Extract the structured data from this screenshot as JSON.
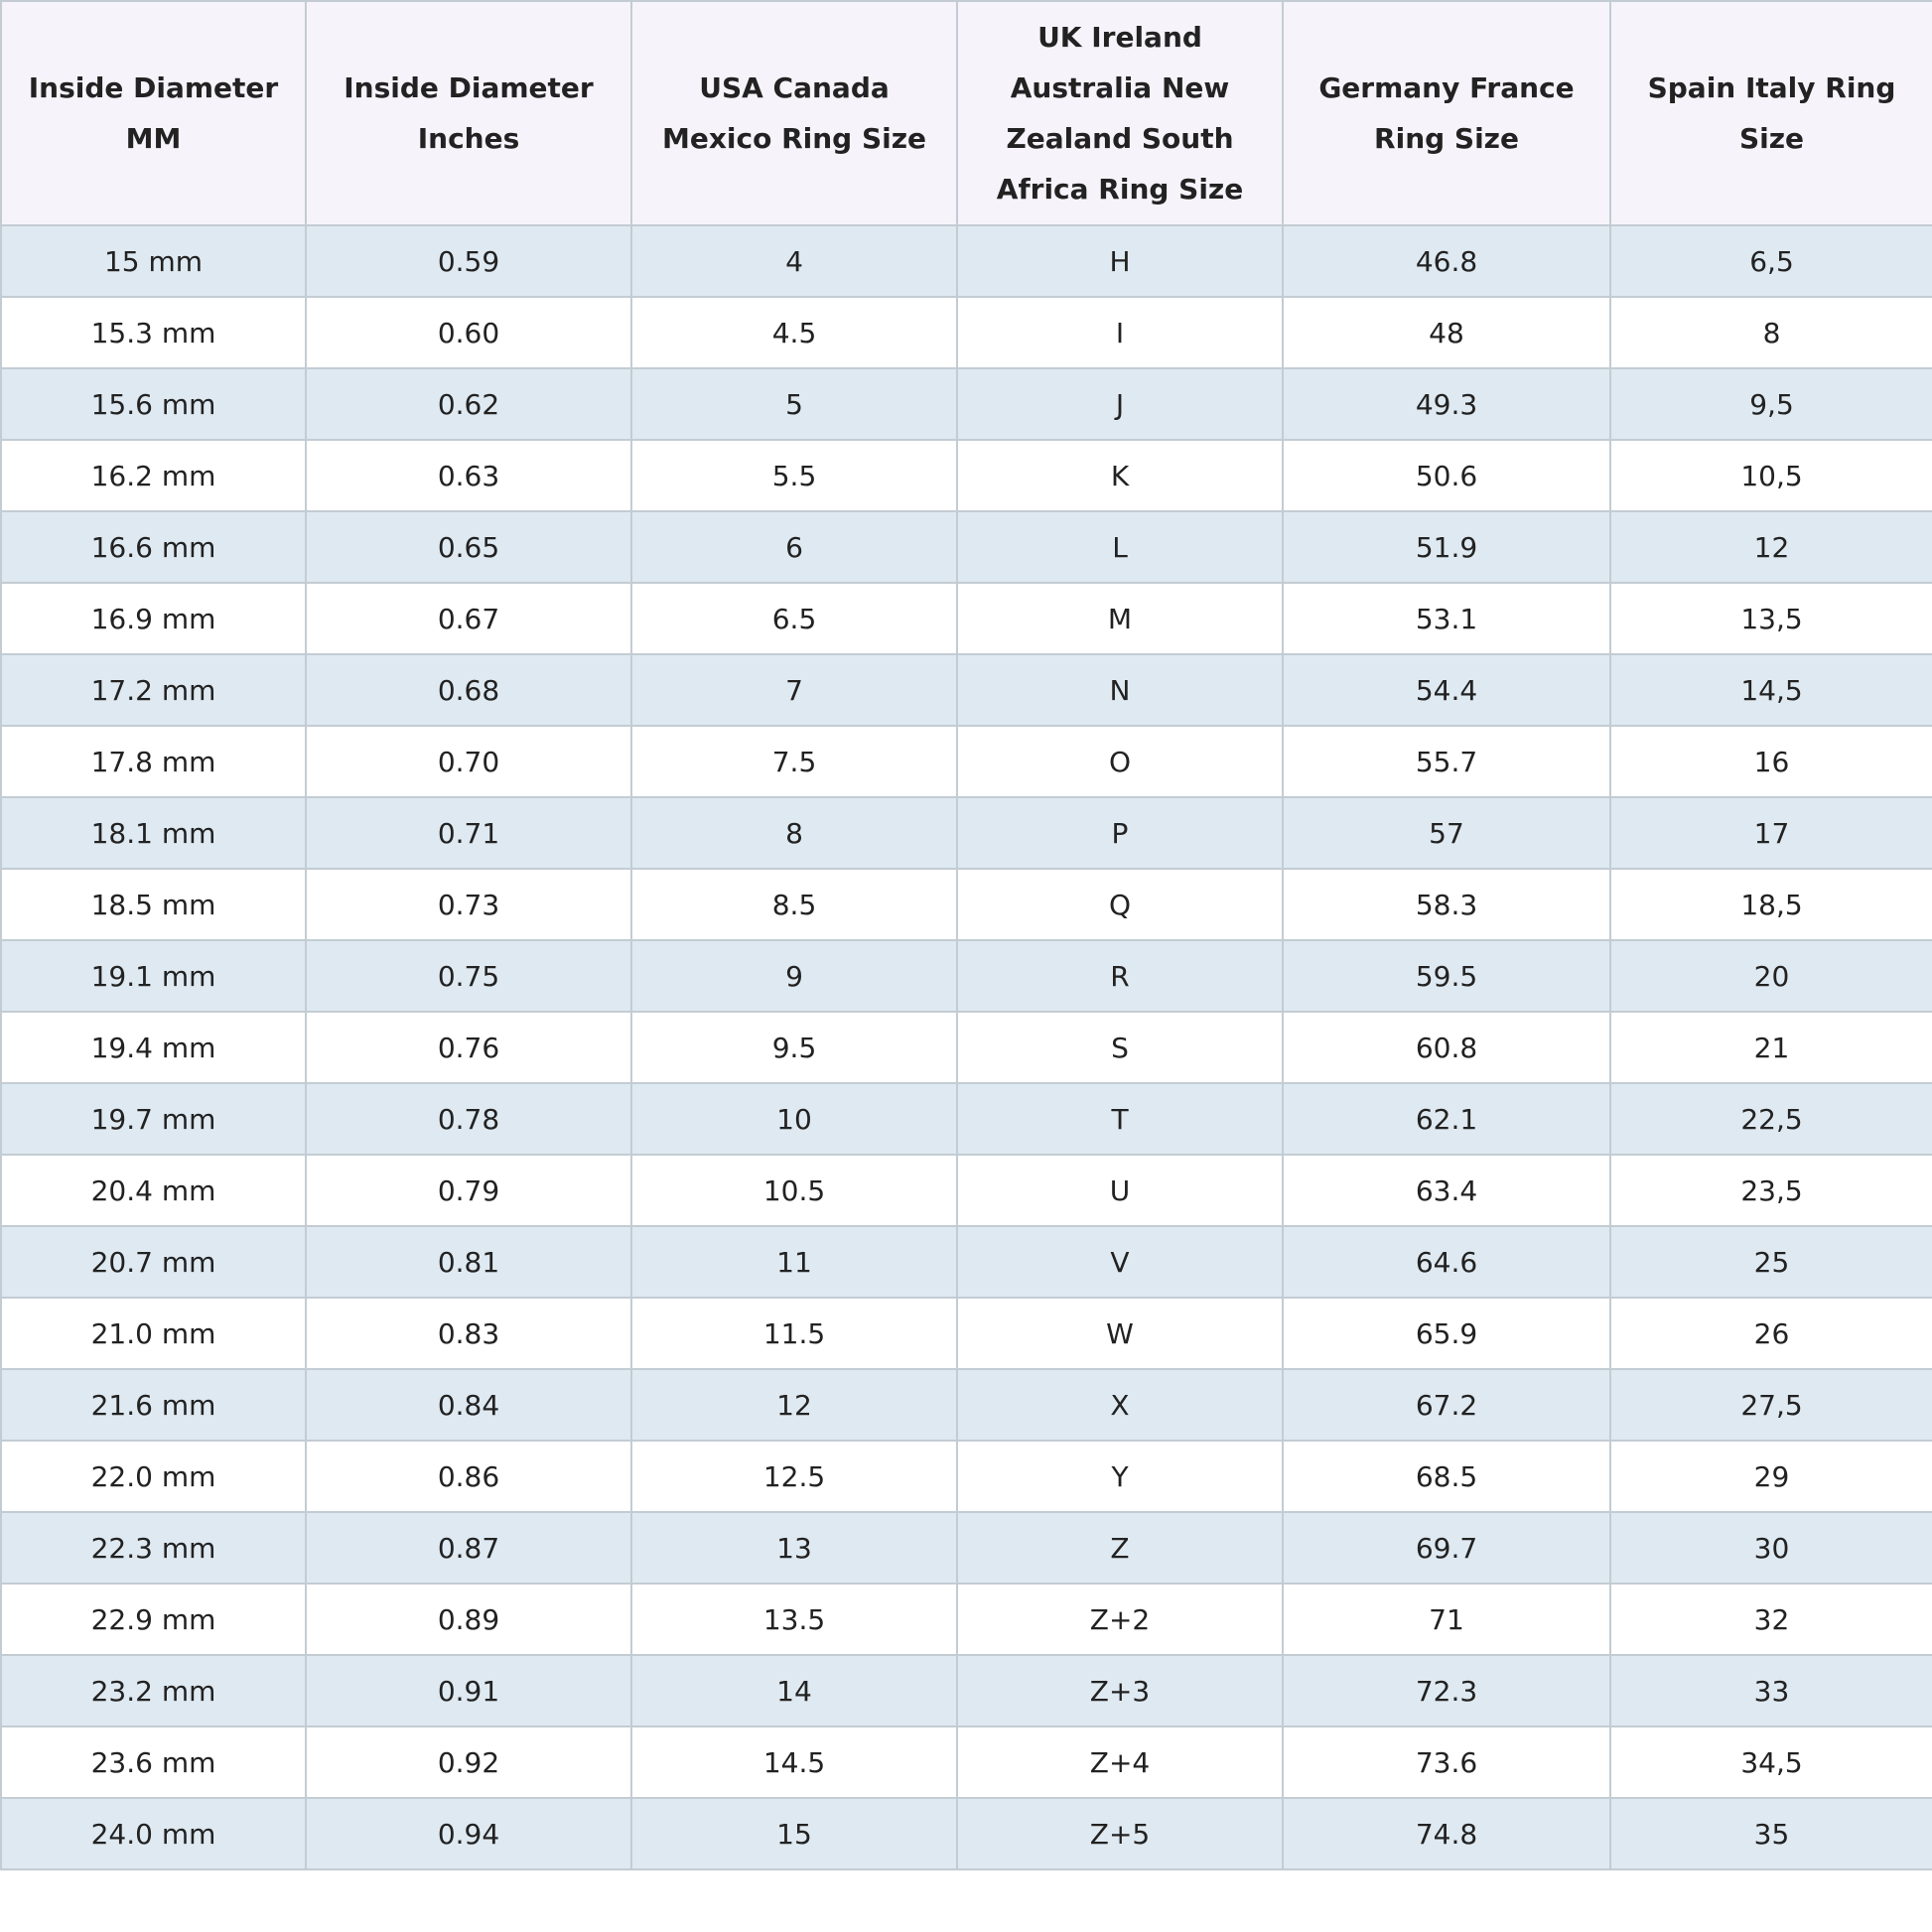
{
  "table": {
    "headers": [
      "Inside Diameter MM",
      "Inside Diameter Inches",
      "USA Canada Mexico Ring Size",
      "UK Ireland Australia New Zealand South Africa Ring Size",
      "Germany France Ring Size",
      "Spain Italy Ring Size"
    ],
    "rows": [
      [
        "15 mm",
        "0.59",
        "4",
        "H",
        "46.8",
        "6,5"
      ],
      [
        "15.3 mm",
        "0.60",
        "4.5",
        "I",
        "48",
        "8"
      ],
      [
        "15.6 mm",
        "0.62",
        "5",
        "J",
        "49.3",
        "9,5"
      ],
      [
        "16.2 mm",
        "0.63",
        "5.5",
        "K",
        "50.6",
        "10,5"
      ],
      [
        "16.6 mm",
        "0.65",
        "6",
        "L",
        "51.9",
        "12"
      ],
      [
        "16.9 mm",
        "0.67",
        "6.5",
        "M",
        "53.1",
        "13,5"
      ],
      [
        "17.2 mm",
        "0.68",
        "7",
        "N",
        "54.4",
        "14,5"
      ],
      [
        "17.8 mm",
        "0.70",
        "7.5",
        "O",
        "55.7",
        "16"
      ],
      [
        "18.1 mm",
        "0.71",
        "8",
        "P",
        "57",
        "17"
      ],
      [
        "18.5 mm",
        "0.73",
        "8.5",
        "Q",
        "58.3",
        "18,5"
      ],
      [
        "19.1 mm",
        "0.75",
        "9",
        "R",
        "59.5",
        "20"
      ],
      [
        "19.4 mm",
        "0.76",
        "9.5",
        "S",
        "60.8",
        "21"
      ],
      [
        "19.7 mm",
        "0.78",
        "10",
        "T",
        "62.1",
        "22,5"
      ],
      [
        "20.4 mm",
        "0.79",
        "10.5",
        "U",
        "63.4",
        "23,5"
      ],
      [
        "20.7 mm",
        "0.81",
        "11",
        "V",
        "64.6",
        "25"
      ],
      [
        "21.0 mm",
        "0.83",
        "11.5",
        "W",
        "65.9",
        "26"
      ],
      [
        "21.6 mm",
        "0.84",
        "12",
        "X",
        "67.2",
        "27,5"
      ],
      [
        "22.0 mm",
        "0.86",
        "12.5",
        "Y",
        "68.5",
        "29"
      ],
      [
        "22.3 mm",
        "0.87",
        "13",
        "Z",
        "69.7",
        "30"
      ],
      [
        "22.9 mm",
        "0.89",
        "13.5",
        "Z+2",
        "71",
        "32"
      ],
      [
        "23.2 mm",
        "0.91",
        "14",
        "Z+3",
        "72.3",
        "33"
      ],
      [
        "23.6 mm",
        "0.92",
        "14.5",
        "Z+4",
        "73.6",
        "34,5"
      ],
      [
        "24.0 mm",
        "0.94",
        "15",
        "Z+5",
        "74.8",
        "35"
      ]
    ]
  }
}
